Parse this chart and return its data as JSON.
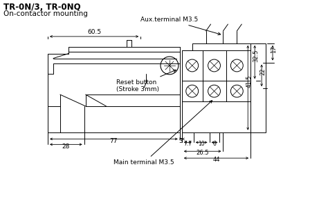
{
  "title_bold": "TR-0N/3, TR-0NQ",
  "title_sub": "On-contactor mounting",
  "bg_color": "#ffffff",
  "annotations": {
    "aux_terminal": "Aux.terminal M3.5",
    "reset_button": "Reset button\n(Stroke 3mm)",
    "main_terminal": "Main terminal M3.5"
  },
  "dims": {
    "top_width": "60.5",
    "left_dim": "28",
    "bottom_dim1": "77",
    "bottom_dim2": "3",
    "right_top": "17",
    "right_mid1": "22",
    "right_mid2": "32.5",
    "right_full": "41.5",
    "bottom_right1": "7.7",
    "bottom_right2": "10",
    "bottom_right3": "6",
    "bottom_right4": "26.5",
    "bottom_right5": "44"
  }
}
